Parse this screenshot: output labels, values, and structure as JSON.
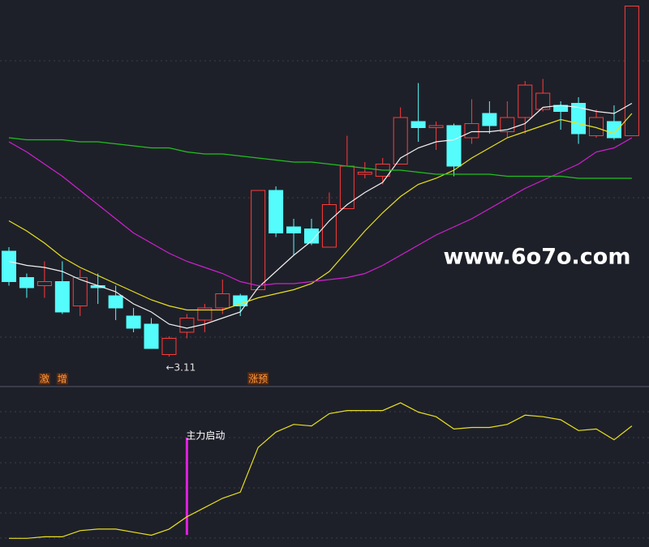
{
  "watermark": "www.6o7o.com",
  "chart_data": [
    {
      "type": "candlestick",
      "ylim": [
        2.99,
        4.87
      ],
      "up_color": "#ff3a3a",
      "down_color": "#54fcfc",
      "open": [
        3.63,
        3.5,
        3.46,
        3.48,
        3.36,
        3.46,
        3.41,
        3.31,
        3.27,
        3.12,
        3.23,
        3.29,
        3.35,
        3.41,
        3.44,
        3.93,
        3.75,
        3.74,
        3.65,
        3.84,
        4.01,
        4.0,
        4.06,
        4.27,
        4.24,
        4.25,
        4.19,
        4.31,
        4.22,
        4.29,
        4.33,
        4.35,
        4.36,
        4.2,
        4.27,
        4.2
      ],
      "close": [
        3.48,
        3.45,
        3.48,
        3.33,
        3.5,
        3.45,
        3.35,
        3.25,
        3.15,
        3.2,
        3.3,
        3.35,
        3.42,
        3.36,
        3.93,
        3.72,
        3.72,
        3.67,
        3.86,
        4.05,
        4.02,
        4.06,
        4.29,
        4.24,
        4.25,
        4.05,
        4.26,
        4.25,
        4.29,
        4.45,
        4.41,
        4.32,
        4.21,
        4.29,
        4.19,
        4.84
      ],
      "high": [
        3.65,
        3.52,
        3.58,
        3.58,
        3.54,
        3.52,
        3.46,
        3.35,
        3.3,
        3.21,
        3.32,
        3.37,
        3.49,
        3.42,
        3.93,
        3.95,
        3.79,
        3.79,
        3.92,
        4.2,
        4.07,
        4.09,
        4.34,
        4.46,
        4.27,
        4.26,
        4.38,
        4.37,
        4.37,
        4.47,
        4.48,
        4.37,
        4.39,
        4.33,
        4.35,
        4.84
      ],
      "low": [
        3.46,
        3.4,
        3.4,
        3.32,
        3.31,
        3.37,
        3.29,
        3.23,
        3.15,
        3.11,
        3.2,
        3.23,
        3.32,
        3.31,
        3.44,
        3.7,
        3.61,
        3.66,
        3.65,
        3.84,
        3.99,
        3.96,
        4.06,
        4.17,
        4.13,
        4.0,
        4.16,
        4.21,
        4.19,
        4.21,
        4.32,
        4.23,
        4.16,
        4.19,
        4.18,
        4.2
      ],
      "low_labels": [
        null,
        null,
        null,
        null,
        null,
        null,
        null,
        null,
        null,
        "←3.11",
        null,
        null,
        null,
        null,
        null,
        null,
        null,
        null,
        null,
        null,
        null,
        null,
        null,
        null,
        null,
        null,
        null,
        null,
        null,
        null,
        null,
        null,
        null,
        null,
        null,
        null
      ],
      "signals": [
        null,
        null,
        "激",
        "增",
        null,
        null,
        null,
        null,
        null,
        null,
        null,
        null,
        null,
        null,
        "涨预",
        null,
        null,
        null,
        null,
        null,
        null,
        null,
        null,
        null,
        null,
        null,
        null,
        null,
        null,
        null,
        null,
        null,
        null,
        null,
        null,
        null
      ],
      "series": [
        {
          "color": "#f0f0f0",
          "values": [
            3.58,
            3.56,
            3.55,
            3.53,
            3.49,
            3.46,
            3.43,
            3.37,
            3.33,
            3.27,
            3.25,
            3.27,
            3.3,
            3.33,
            3.45,
            3.53,
            3.61,
            3.68,
            3.78,
            3.86,
            3.92,
            3.97,
            4.09,
            4.14,
            4.17,
            4.18,
            4.22,
            4.22,
            4.23,
            4.26,
            4.34,
            4.35,
            4.34,
            4.32,
            4.31,
            4.36
          ]
        },
        {
          "color": "#e8e020",
          "values": [
            3.78,
            3.73,
            3.67,
            3.6,
            3.55,
            3.51,
            3.47,
            3.43,
            3.39,
            3.36,
            3.34,
            3.34,
            3.34,
            3.37,
            3.4,
            3.42,
            3.44,
            3.47,
            3.53,
            3.63,
            3.73,
            3.82,
            3.9,
            3.96,
            3.99,
            4.03,
            4.09,
            4.14,
            4.19,
            4.22,
            4.25,
            4.28,
            4.26,
            4.24,
            4.21,
            4.31
          ]
        },
        {
          "color": "#d020d0",
          "values": [
            4.17,
            4.12,
            4.06,
            4.0,
            3.93,
            3.86,
            3.79,
            3.72,
            3.67,
            3.62,
            3.58,
            3.55,
            3.52,
            3.48,
            3.46,
            3.47,
            3.47,
            3.48,
            3.49,
            3.5,
            3.52,
            3.56,
            3.61,
            3.66,
            3.71,
            3.75,
            3.79,
            3.84,
            3.89,
            3.94,
            3.98,
            4.02,
            4.06,
            4.12,
            4.14,
            4.19
          ]
        },
        {
          "color": "#20c020",
          "values": [
            4.19,
            4.18,
            4.18,
            4.18,
            4.17,
            4.17,
            4.16,
            4.15,
            4.14,
            4.14,
            4.12,
            4.11,
            4.11,
            4.1,
            4.09,
            4.08,
            4.07,
            4.07,
            4.06,
            4.05,
            4.04,
            4.03,
            4.03,
            4.02,
            4.01,
            4.01,
            4.01,
            4.01,
            4.0,
            4.0,
            4.0,
            4.0,
            3.99,
            3.99,
            3.99,
            3.99
          ]
        }
      ]
    },
    {
      "type": "line",
      "ylim": [
        0,
        100
      ],
      "color": "#e8e020",
      "marker_color": "#e020e0",
      "values": [
        3,
        3,
        4,
        4,
        8,
        9,
        9,
        7,
        5,
        9,
        17,
        23,
        29,
        33,
        62,
        72,
        77,
        76,
        84,
        86,
        86,
        86,
        91,
        85,
        82,
        74,
        75,
        75,
        77,
        83,
        82,
        80,
        73,
        74,
        67,
        76
      ],
      "annotations": [
        null,
        null,
        null,
        null,
        null,
        null,
        null,
        null,
        null,
        null,
        "主力启动",
        null,
        null,
        null,
        null,
        null,
        null,
        null,
        null,
        null,
        null,
        null,
        null,
        null,
        null,
        null,
        null,
        null,
        null,
        null,
        null,
        null,
        null,
        null,
        null,
        null
      ]
    }
  ]
}
